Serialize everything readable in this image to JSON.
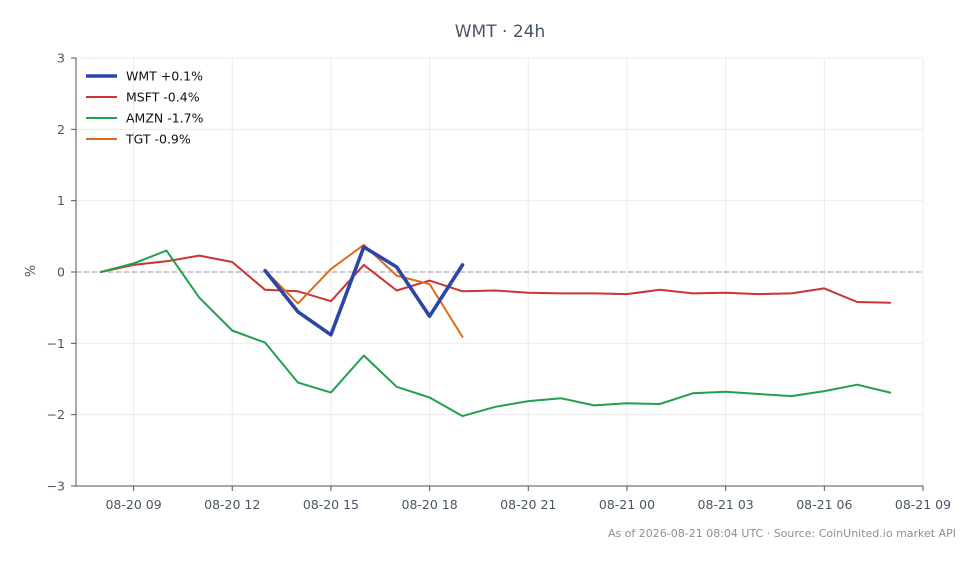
{
  "chart_data": {
    "type": "line",
    "title": "WMT · 24h",
    "ylabel": "%",
    "xlabel": "",
    "ylim": [
      -3,
      3
    ],
    "yticks": [
      3,
      2,
      1,
      0,
      -1,
      -2,
      -3
    ],
    "ytick_labels": [
      "3",
      "2",
      "1",
      "0",
      "−1",
      "−2",
      "−3"
    ],
    "xlim": [
      7.25,
      33.0
    ],
    "xticks": [
      {
        "x": 9,
        "label": "08-20 09"
      },
      {
        "x": 12,
        "label": "08-20 12"
      },
      {
        "x": 15,
        "label": "08-20 15"
      },
      {
        "x": 18,
        "label": "08-20 18"
      },
      {
        "x": 21,
        "label": "08-20 21"
      },
      {
        "x": 24,
        "label": "08-21 00"
      },
      {
        "x": 27,
        "label": "08-21 03"
      },
      {
        "x": 30,
        "label": "08-21 06"
      },
      {
        "x": 33,
        "label": "08-21 09"
      }
    ],
    "grid": true,
    "zero_line": true,
    "legend_position": "top-left",
    "series": [
      {
        "name": "WMT +0.1%",
        "color": "#2b46a6",
        "emphasis": true,
        "x": [
          13,
          14,
          15,
          16,
          17,
          18,
          19
        ],
        "y": [
          0.02,
          -0.56,
          -0.88,
          0.35,
          0.07,
          -0.62,
          0.1
        ]
      },
      {
        "name": "MSFT -0.4%",
        "color": "#cc3333",
        "x": [
          8,
          9,
          10,
          11,
          12,
          13,
          14,
          15,
          16,
          17,
          18,
          19,
          20,
          21,
          22,
          23,
          24,
          25,
          26,
          27,
          28,
          29,
          30,
          31,
          32
        ],
        "y": [
          0.0,
          0.1,
          0.15,
          0.23,
          0.14,
          -0.25,
          -0.27,
          -0.41,
          0.1,
          -0.26,
          -0.12,
          -0.27,
          -0.26,
          -0.29,
          -0.3,
          -0.3,
          -0.31,
          -0.25,
          -0.3,
          -0.29,
          -0.31,
          -0.3,
          -0.23,
          -0.42,
          -0.43
        ]
      },
      {
        "name": "AMZN -1.7%",
        "color": "#22a04b",
        "x": [
          8,
          9,
          10,
          11,
          12,
          13,
          14,
          15,
          16,
          17,
          18,
          19,
          20,
          21,
          22,
          23,
          24,
          25,
          26,
          27,
          28,
          29,
          30,
          31,
          32
        ],
        "y": [
          0.0,
          0.12,
          0.3,
          -0.36,
          -0.82,
          -0.99,
          -1.55,
          -1.69,
          -1.17,
          -1.61,
          -1.76,
          -2.02,
          -1.89,
          -1.81,
          -1.77,
          -1.87,
          -1.84,
          -1.85,
          -1.7,
          -1.68,
          -1.71,
          -1.74,
          -1.67,
          -1.58,
          -1.69
        ]
      },
      {
        "name": "TGT -0.9%",
        "color": "#e06a1b",
        "x": [
          13,
          14,
          15,
          16,
          17,
          18,
          19
        ],
        "y": [
          0.02,
          -0.44,
          0.04,
          0.38,
          -0.05,
          -0.17,
          -0.91
        ]
      }
    ],
    "footer": "As of 2026-08-21 08:04 UTC · Source: CoinUnited.io market API"
  }
}
